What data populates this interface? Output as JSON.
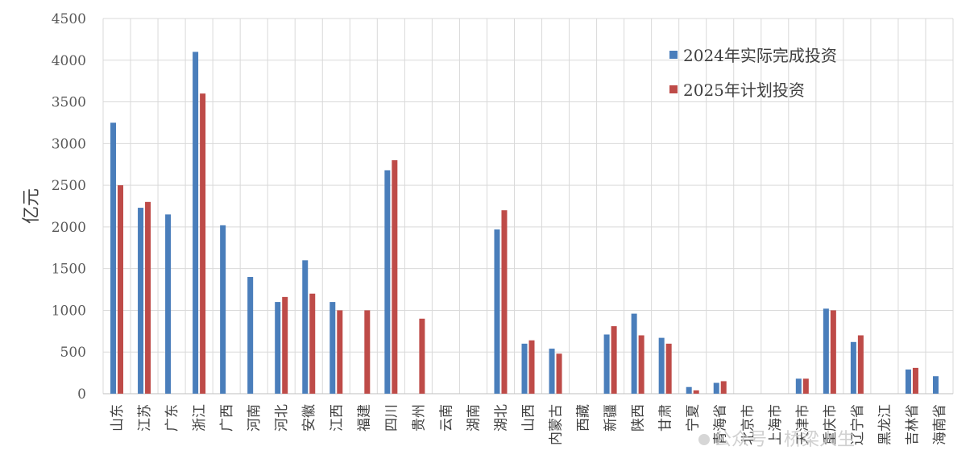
{
  "chart_data": {
    "type": "bar",
    "ylabel": "亿元",
    "ylim": [
      0,
      4500
    ],
    "yticks": [
      0,
      500,
      1000,
      1500,
      2000,
      2500,
      3000,
      3500,
      4000,
      4500
    ],
    "grid": true,
    "legend_position": "top-right",
    "categories": [
      "山东",
      "江苏",
      "广东",
      "浙江",
      "广西",
      "河南",
      "河北",
      "安徽",
      "江西",
      "福建",
      "四川",
      "贵州",
      "云南",
      "湖南",
      "湖北",
      "山西",
      "内蒙古",
      "西藏",
      "新疆",
      "陕西",
      "甘肃",
      "宁夏",
      "青海省",
      "北京市",
      "上海市",
      "天津市",
      "重庆市",
      "辽宁省",
      "黑龙江",
      "吉林省",
      "海南省"
    ],
    "series": [
      {
        "name": "2024年实际完成投资",
        "color": "#4a7ebb",
        "values": [
          3250,
          2230,
          2150,
          4100,
          2020,
          1400,
          1100,
          1600,
          1100,
          null,
          2680,
          null,
          null,
          null,
          1970,
          600,
          540,
          null,
          710,
          960,
          670,
          80,
          130,
          null,
          null,
          180,
          1020,
          620,
          null,
          290,
          210
        ]
      },
      {
        "name": "2025年计划投资",
        "color": "#be4b48",
        "values": [
          2500,
          2300,
          null,
          3600,
          null,
          null,
          1160,
          1200,
          1000,
          1000,
          2800,
          900,
          null,
          null,
          2200,
          640,
          480,
          null,
          810,
          700,
          600,
          40,
          150,
          null,
          null,
          180,
          1000,
          700,
          null,
          310,
          null
        ]
      }
    ]
  },
  "watermark": "公众号 · 桥梁人生"
}
